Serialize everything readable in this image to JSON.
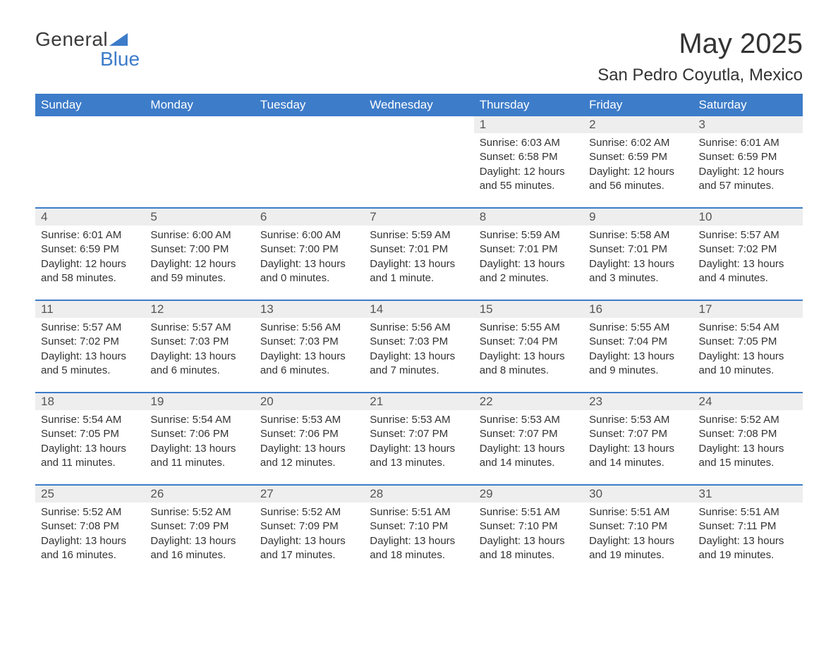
{
  "logo": {
    "general": "General",
    "blue": "Blue",
    "shape_color": "#3d7cc9"
  },
  "header": {
    "month_title": "May 2025",
    "location": "San Pedro Coyutla, Mexico"
  },
  "colors": {
    "header_bg": "#3d7cc9",
    "header_text": "#ffffff",
    "daynum_bg": "#eeeeee",
    "daynum_text": "#555555",
    "body_text": "#333333",
    "page_bg": "#ffffff",
    "week_separator": "#3d7cc9"
  },
  "typography": {
    "month_title_fontsize": 40,
    "location_fontsize": 24,
    "dayheader_fontsize": 17,
    "daynum_fontsize": 17,
    "body_fontsize": 15,
    "font_family": "Arial"
  },
  "calendar": {
    "type": "table",
    "columns": [
      "Sunday",
      "Monday",
      "Tuesday",
      "Wednesday",
      "Thursday",
      "Friday",
      "Saturday"
    ],
    "weeks": [
      [
        null,
        null,
        null,
        null,
        {
          "num": "1",
          "sunrise": "Sunrise: 6:03 AM",
          "sunset": "Sunset: 6:58 PM",
          "daylight": "Daylight: 12 hours and 55 minutes."
        },
        {
          "num": "2",
          "sunrise": "Sunrise: 6:02 AM",
          "sunset": "Sunset: 6:59 PM",
          "daylight": "Daylight: 12 hours and 56 minutes."
        },
        {
          "num": "3",
          "sunrise": "Sunrise: 6:01 AM",
          "sunset": "Sunset: 6:59 PM",
          "daylight": "Daylight: 12 hours and 57 minutes."
        }
      ],
      [
        {
          "num": "4",
          "sunrise": "Sunrise: 6:01 AM",
          "sunset": "Sunset: 6:59 PM",
          "daylight": "Daylight: 12 hours and 58 minutes."
        },
        {
          "num": "5",
          "sunrise": "Sunrise: 6:00 AM",
          "sunset": "Sunset: 7:00 PM",
          "daylight": "Daylight: 12 hours and 59 minutes."
        },
        {
          "num": "6",
          "sunrise": "Sunrise: 6:00 AM",
          "sunset": "Sunset: 7:00 PM",
          "daylight": "Daylight: 13 hours and 0 minutes."
        },
        {
          "num": "7",
          "sunrise": "Sunrise: 5:59 AM",
          "sunset": "Sunset: 7:01 PM",
          "daylight": "Daylight: 13 hours and 1 minute."
        },
        {
          "num": "8",
          "sunrise": "Sunrise: 5:59 AM",
          "sunset": "Sunset: 7:01 PM",
          "daylight": "Daylight: 13 hours and 2 minutes."
        },
        {
          "num": "9",
          "sunrise": "Sunrise: 5:58 AM",
          "sunset": "Sunset: 7:01 PM",
          "daylight": "Daylight: 13 hours and 3 minutes."
        },
        {
          "num": "10",
          "sunrise": "Sunrise: 5:57 AM",
          "sunset": "Sunset: 7:02 PM",
          "daylight": "Daylight: 13 hours and 4 minutes."
        }
      ],
      [
        {
          "num": "11",
          "sunrise": "Sunrise: 5:57 AM",
          "sunset": "Sunset: 7:02 PM",
          "daylight": "Daylight: 13 hours and 5 minutes."
        },
        {
          "num": "12",
          "sunrise": "Sunrise: 5:57 AM",
          "sunset": "Sunset: 7:03 PM",
          "daylight": "Daylight: 13 hours and 6 minutes."
        },
        {
          "num": "13",
          "sunrise": "Sunrise: 5:56 AM",
          "sunset": "Sunset: 7:03 PM",
          "daylight": "Daylight: 13 hours and 6 minutes."
        },
        {
          "num": "14",
          "sunrise": "Sunrise: 5:56 AM",
          "sunset": "Sunset: 7:03 PM",
          "daylight": "Daylight: 13 hours and 7 minutes."
        },
        {
          "num": "15",
          "sunrise": "Sunrise: 5:55 AM",
          "sunset": "Sunset: 7:04 PM",
          "daylight": "Daylight: 13 hours and 8 minutes."
        },
        {
          "num": "16",
          "sunrise": "Sunrise: 5:55 AM",
          "sunset": "Sunset: 7:04 PM",
          "daylight": "Daylight: 13 hours and 9 minutes."
        },
        {
          "num": "17",
          "sunrise": "Sunrise: 5:54 AM",
          "sunset": "Sunset: 7:05 PM",
          "daylight": "Daylight: 13 hours and 10 minutes."
        }
      ],
      [
        {
          "num": "18",
          "sunrise": "Sunrise: 5:54 AM",
          "sunset": "Sunset: 7:05 PM",
          "daylight": "Daylight: 13 hours and 11 minutes."
        },
        {
          "num": "19",
          "sunrise": "Sunrise: 5:54 AM",
          "sunset": "Sunset: 7:06 PM",
          "daylight": "Daylight: 13 hours and 11 minutes."
        },
        {
          "num": "20",
          "sunrise": "Sunrise: 5:53 AM",
          "sunset": "Sunset: 7:06 PM",
          "daylight": "Daylight: 13 hours and 12 minutes."
        },
        {
          "num": "21",
          "sunrise": "Sunrise: 5:53 AM",
          "sunset": "Sunset: 7:07 PM",
          "daylight": "Daylight: 13 hours and 13 minutes."
        },
        {
          "num": "22",
          "sunrise": "Sunrise: 5:53 AM",
          "sunset": "Sunset: 7:07 PM",
          "daylight": "Daylight: 13 hours and 14 minutes."
        },
        {
          "num": "23",
          "sunrise": "Sunrise: 5:53 AM",
          "sunset": "Sunset: 7:07 PM",
          "daylight": "Daylight: 13 hours and 14 minutes."
        },
        {
          "num": "24",
          "sunrise": "Sunrise: 5:52 AM",
          "sunset": "Sunset: 7:08 PM",
          "daylight": "Daylight: 13 hours and 15 minutes."
        }
      ],
      [
        {
          "num": "25",
          "sunrise": "Sunrise: 5:52 AM",
          "sunset": "Sunset: 7:08 PM",
          "daylight": "Daylight: 13 hours and 16 minutes."
        },
        {
          "num": "26",
          "sunrise": "Sunrise: 5:52 AM",
          "sunset": "Sunset: 7:09 PM",
          "daylight": "Daylight: 13 hours and 16 minutes."
        },
        {
          "num": "27",
          "sunrise": "Sunrise: 5:52 AM",
          "sunset": "Sunset: 7:09 PM",
          "daylight": "Daylight: 13 hours and 17 minutes."
        },
        {
          "num": "28",
          "sunrise": "Sunrise: 5:51 AM",
          "sunset": "Sunset: 7:10 PM",
          "daylight": "Daylight: 13 hours and 18 minutes."
        },
        {
          "num": "29",
          "sunrise": "Sunrise: 5:51 AM",
          "sunset": "Sunset: 7:10 PM",
          "daylight": "Daylight: 13 hours and 18 minutes."
        },
        {
          "num": "30",
          "sunrise": "Sunrise: 5:51 AM",
          "sunset": "Sunset: 7:10 PM",
          "daylight": "Daylight: 13 hours and 19 minutes."
        },
        {
          "num": "31",
          "sunrise": "Sunrise: 5:51 AM",
          "sunset": "Sunset: 7:11 PM",
          "daylight": "Daylight: 13 hours and 19 minutes."
        }
      ]
    ]
  }
}
